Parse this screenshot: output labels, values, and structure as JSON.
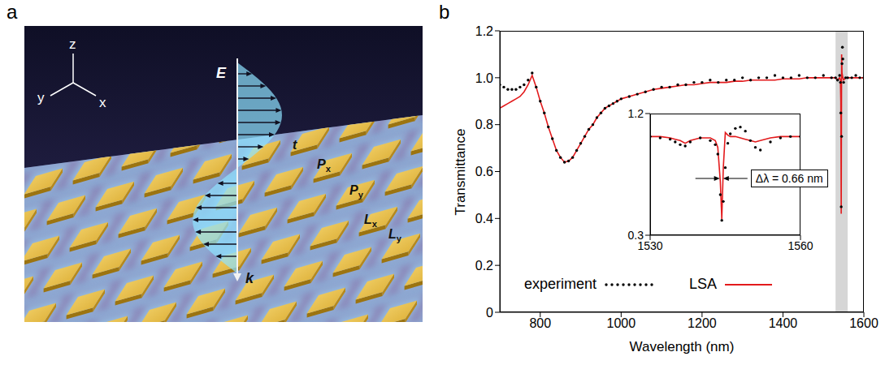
{
  "panel_a": {
    "label": "a",
    "axis_labels": [
      "z",
      "y",
      "x"
    ],
    "field_label": "E",
    "wave_vector_label": "k",
    "dimension_labels": [
      "t",
      "Px",
      "Py",
      "Lx",
      "Ly"
    ]
  },
  "panel_b": {
    "label": "b"
  },
  "chart_data": [
    {
      "type": "line",
      "x_label": "Wavelength (nm)",
      "y_label": "Transmittance",
      "x": [
        700,
        710,
        720,
        730,
        740,
        750,
        760,
        770,
        780,
        790,
        800,
        810,
        820,
        830,
        840,
        850,
        860,
        870,
        880,
        890,
        900,
        910,
        920,
        930,
        940,
        950,
        960,
        970,
        980,
        990,
        1000,
        1020,
        1040,
        1060,
        1080,
        1100,
        1120,
        1140,
        1160,
        1180,
        1200,
        1220,
        1240,
        1260,
        1280,
        1300,
        1320,
        1340,
        1360,
        1380,
        1400,
        1420,
        1440,
        1460,
        1480,
        1500,
        1520,
        1530,
        1535,
        1540,
        1542,
        1543,
        1544,
        1545,
        1546,
        1547,
        1548,
        1550,
        1555,
        1560,
        1570,
        1580,
        1590,
        1600
      ],
      "series": [
        {
          "name": "experiment",
          "color": "#000000",
          "marker": "dot",
          "line_style": "none",
          "values": [
            0.97,
            0.96,
            0.95,
            0.95,
            0.95,
            0.96,
            0.97,
            0.99,
            1.02,
            0.96,
            0.9,
            0.85,
            0.79,
            0.74,
            0.69,
            0.66,
            0.64,
            0.645,
            0.66,
            0.69,
            0.72,
            0.75,
            0.78,
            0.8,
            0.83,
            0.85,
            0.87,
            0.88,
            0.89,
            0.9,
            0.91,
            0.92,
            0.93,
            0.94,
            0.95,
            0.96,
            0.96,
            0.97,
            0.97,
            0.98,
            0.98,
            0.99,
            0.98,
            0.99,
            0.99,
            1.0,
            0.99,
            1.0,
            1.0,
            1.01,
            1.0,
            1.0,
            1.01,
            1.0,
            1.0,
            1.01,
            1.0,
            1.0,
            0.99,
            1.01,
            0.98,
            0.85,
            0.45,
            0.75,
            1.06,
            1.13,
            1.08,
            0.98,
            1.0,
            1.0,
            1.0,
            1.01,
            1.0,
            1.0
          ]
        },
        {
          "name": "LSA",
          "color": "#e31a1c",
          "marker": "none",
          "line_style": "solid",
          "values": [
            0.87,
            0.88,
            0.89,
            0.9,
            0.91,
            0.92,
            0.94,
            0.97,
            1.01,
            0.96,
            0.9,
            0.85,
            0.79,
            0.74,
            0.69,
            0.66,
            0.64,
            0.645,
            0.66,
            0.69,
            0.72,
            0.75,
            0.78,
            0.8,
            0.83,
            0.85,
            0.87,
            0.88,
            0.89,
            0.9,
            0.91,
            0.92,
            0.93,
            0.94,
            0.95,
            0.955,
            0.96,
            0.965,
            0.97,
            0.97,
            0.975,
            0.98,
            0.98,
            0.98,
            0.985,
            0.985,
            0.99,
            0.99,
            0.99,
            0.99,
            0.995,
            0.995,
            0.995,
            1.0,
            1.0,
            1.0,
            1.0,
            1.0,
            0.99,
            1.0,
            0.99,
            0.9,
            0.42,
            1.1,
            1.02,
            1.01,
            1.0,
            0.99,
            1.0,
            1.0,
            1.0,
            1.0,
            1.0,
            1.0
          ]
        }
      ],
      "xlim": [
        700,
        1600
      ],
      "xticks": [
        800,
        1000,
        1200,
        1400,
        1600
      ],
      "ylim": [
        0,
        1.2
      ],
      "yticks": [
        0,
        0.2,
        0.4,
        0.6,
        0.8,
        {
          "value": 1,
          "label": "1.0"
        },
        1.2
      ],
      "grid": false,
      "legend": "bottom",
      "highlight": [
        1530,
        1560
      ]
    },
    {
      "type": "line",
      "x": [
        1530,
        1532,
        1534,
        1535,
        1536,
        1537,
        1538,
        1540,
        1542,
        1543,
        1543.5,
        1544,
        1544.3,
        1544.6,
        1545,
        1545.5,
        1546,
        1547,
        1548,
        1549,
        1550,
        1551,
        1552,
        1554,
        1556,
        1558,
        1560
      ],
      "series": [
        {
          "name": "experiment",
          "color": "#000000",
          "marker": "dot",
          "line_style": "none",
          "values": [
            1.03,
            1.02,
            1.01,
            0.99,
            0.97,
            0.96,
            0.99,
            1.02,
            1.0,
            0.97,
            0.9,
            0.6,
            0.41,
            0.55,
            0.8,
            0.98,
            1.05,
            1.09,
            1.1,
            1.07,
            1.0,
            0.95,
            0.93,
            0.99,
            1.02,
            1.03,
            1.03
          ]
        },
        {
          "name": "LSA",
          "color": "#e31a1c",
          "marker": "none",
          "line_style": "solid",
          "values": [
            1.03,
            1.03,
            1.02,
            1.01,
            1.0,
            0.98,
            1.0,
            1.02,
            1.02,
            1.0,
            0.95,
            0.7,
            0.42,
            0.8,
            1.06,
            1.04,
            1.03,
            1.03,
            1.02,
            1.01,
            1.0,
            0.99,
            1.0,
            1.02,
            1.03,
            1.03,
            1.03
          ]
        }
      ],
      "xlim": [
        1530,
        1560
      ],
      "xticks": [
        1530,
        1560
      ],
      "ylim": [
        0.3,
        1.2
      ],
      "yticks": [
        0.3,
        1.2
      ],
      "grid": false,
      "annotations": [
        {
          "text": "Δλ = 0.66 nm",
          "x": [
            1543.9,
            1544.56
          ],
          "y": 0.72
        }
      ]
    }
  ]
}
